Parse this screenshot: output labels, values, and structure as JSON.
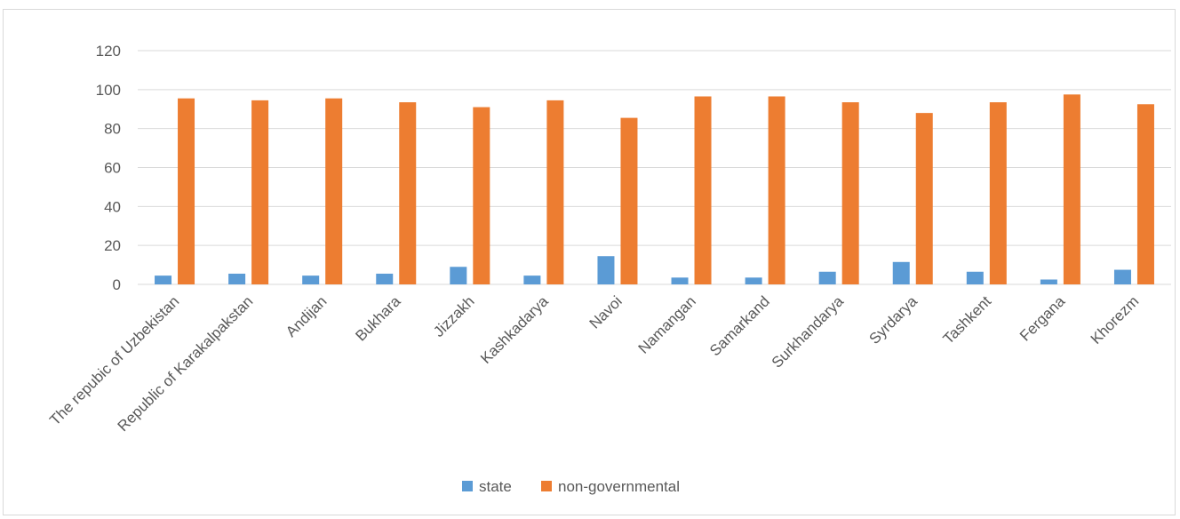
{
  "chart_data": {
    "type": "bar",
    "categories": [
      "The repubic of Uzbekistan",
      "Republic of Karakalpakstan",
      "Andijan",
      "Bukhara",
      "Jizzakh",
      "Kashkadarya",
      "Navoi",
      "Namangan",
      "Samarkand",
      "Surkhandarya",
      "Syrdarya",
      "Tashkent",
      "Fergana",
      "Khorezm"
    ],
    "series": [
      {
        "name": "state",
        "color": "#5b9bd5",
        "values": [
          4.5,
          5.5,
          4.5,
          5.5,
          9,
          4.5,
          14.5,
          3.5,
          3.5,
          6.5,
          11.5,
          6.5,
          2.5,
          7.5
        ]
      },
      {
        "name": "non-governmental",
        "color": "#ed7d31",
        "values": [
          95.5,
          94.5,
          95.5,
          93.5,
          91,
          94.5,
          85.5,
          96.5,
          96.5,
          93.5,
          88,
          93.5,
          97.5,
          92.5
        ]
      }
    ],
    "yticks": [
      "0",
      "20",
      "40",
      "60",
      "80",
      "100",
      "120"
    ],
    "ylim": [
      0,
      120
    ],
    "grid": true,
    "legend": "bottom-center",
    "title": "",
    "xlabel": "",
    "ylabel": ""
  }
}
